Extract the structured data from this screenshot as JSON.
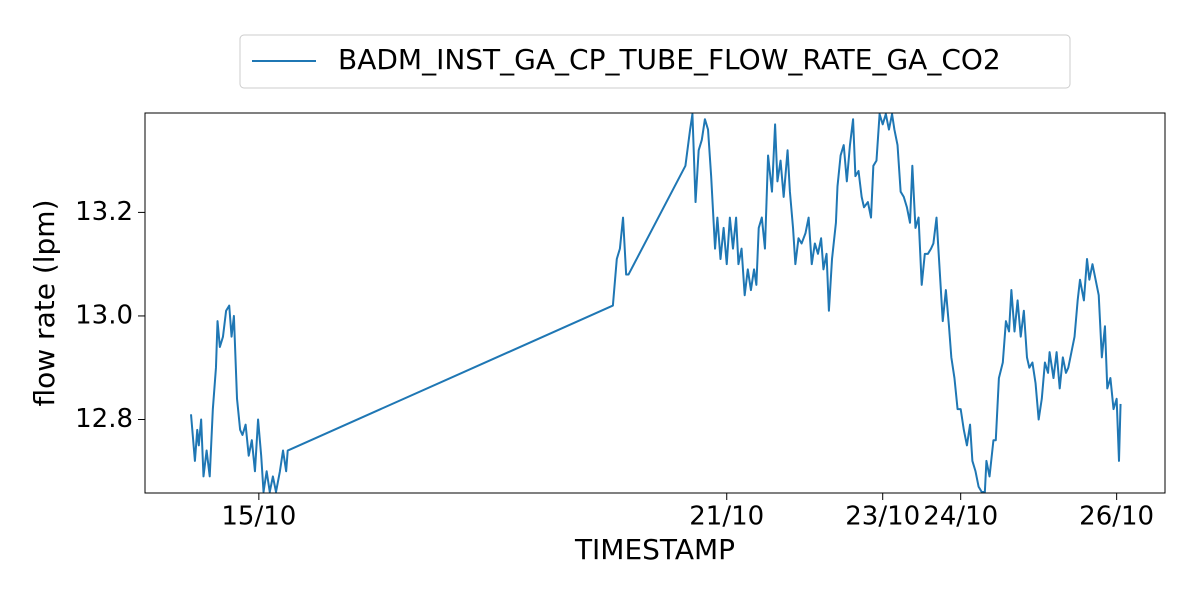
{
  "chart_data": {
    "type": "line",
    "xlabel": "TIMESTAMP",
    "ylabel": "flow rate (lpm)",
    "legend": "upper center",
    "xlim": [
      13.54,
      26.62
    ],
    "xticks": [
      {
        "value": 15,
        "label": "15/10"
      },
      {
        "value": 21,
        "label": "21/10"
      },
      {
        "value": 23,
        "label": "23/10"
      },
      {
        "value": 24,
        "label": "24/10"
      },
      {
        "value": 26,
        "label": "26/10"
      }
    ],
    "ylim": [
      12.658,
      13.392
    ],
    "yticks": [
      {
        "value": 12.8,
        "label": "12.8"
      },
      {
        "value": 13.0,
        "label": "13.0"
      },
      {
        "value": 13.2,
        "label": "13.2"
      }
    ],
    "series": [
      {
        "name": "BADM_INST_GA_CP_TUBE_FLOW_RATE_GA_CO2",
        "color": "#1f77b4",
        "x": [
          14.13,
          14.18,
          14.21,
          14.23,
          14.26,
          14.29,
          14.33,
          14.37,
          14.41,
          14.45,
          14.47,
          14.5,
          14.54,
          14.58,
          14.62,
          14.65,
          14.68,
          14.72,
          14.76,
          14.79,
          14.83,
          14.87,
          14.91,
          14.95,
          14.99,
          15.03,
          15.06,
          15.1,
          15.14,
          15.18,
          15.22,
          15.27,
          15.31,
          15.35,
          15.37,
          19.54,
          19.59,
          19.63,
          19.67,
          19.71,
          19.74,
          20.47,
          20.53,
          20.56,
          20.6,
          20.64,
          20.68,
          20.72,
          20.76,
          20.8,
          20.85,
          20.88,
          20.92,
          20.96,
          21.0,
          21.04,
          21.08,
          21.12,
          21.15,
          21.19,
          21.23,
          21.27,
          21.31,
          21.35,
          21.38,
          21.41,
          21.45,
          21.49,
          21.53,
          21.58,
          21.62,
          21.65,
          21.69,
          21.73,
          21.78,
          21.81,
          21.85,
          21.88,
          21.92,
          21.96,
          22.01,
          22.05,
          22.09,
          22.13,
          22.17,
          22.21,
          22.24,
          22.28,
          22.31,
          22.35,
          22.4,
          22.42,
          22.46,
          22.5,
          22.54,
          22.58,
          22.62,
          22.65,
          22.69,
          22.73,
          22.76,
          22.81,
          22.85,
          22.88,
          22.92,
          22.96,
          23.0,
          23.04,
          23.08,
          23.12,
          23.15,
          23.19,
          23.23,
          23.27,
          23.31,
          23.35,
          23.38,
          23.42,
          23.46,
          23.5,
          23.54,
          23.58,
          23.62,
          23.65,
          23.69,
          23.73,
          23.77,
          23.81,
          23.85,
          23.88,
          23.92,
          23.96,
          24.0,
          24.04,
          24.08,
          24.12,
          24.15,
          24.19,
          24.23,
          24.27,
          24.31,
          24.33,
          24.37,
          24.42,
          24.45,
          24.49,
          24.54,
          24.58,
          24.62,
          24.65,
          24.69,
          24.73,
          24.77,
          24.81,
          24.85,
          24.88,
          24.92,
          24.96,
          25.0,
          25.04,
          25.08,
          25.12,
          25.14,
          25.19,
          25.23,
          25.27,
          25.31,
          25.35,
          25.38,
          25.42,
          25.46,
          25.5,
          25.53,
          25.58,
          25.62,
          25.65,
          25.69,
          25.73,
          25.77,
          25.81,
          25.85,
          25.88,
          25.92,
          25.96,
          26.0,
          26.03,
          26.05
        ],
        "values": [
          12.81,
          12.72,
          12.78,
          12.75,
          12.8,
          12.69,
          12.74,
          12.69,
          12.82,
          12.9,
          12.99,
          12.94,
          12.96,
          13.01,
          13.02,
          12.96,
          13.0,
          12.84,
          12.78,
          12.77,
          12.79,
          12.73,
          12.76,
          12.7,
          12.8,
          12.73,
          12.66,
          12.7,
          12.66,
          12.69,
          12.66,
          12.7,
          12.74,
          12.7,
          12.74,
          13.02,
          13.11,
          13.13,
          13.19,
          13.08,
          13.08,
          13.29,
          13.36,
          13.39,
          13.22,
          13.32,
          13.34,
          13.38,
          13.36,
          13.27,
          13.13,
          13.19,
          13.11,
          13.17,
          13.1,
          13.19,
          13.13,
          13.19,
          13.1,
          13.13,
          13.04,
          13.09,
          13.05,
          13.09,
          13.06,
          13.17,
          13.19,
          13.13,
          13.31,
          13.24,
          13.37,
          13.26,
          13.3,
          13.23,
          13.32,
          13.24,
          13.17,
          13.1,
          13.15,
          13.14,
          13.16,
          13.19,
          13.1,
          13.14,
          13.12,
          13.15,
          13.09,
          13.12,
          13.01,
          13.11,
          13.18,
          13.25,
          13.31,
          13.33,
          13.26,
          13.33,
          13.38,
          13.27,
          13.28,
          13.23,
          13.21,
          13.22,
          13.19,
          13.29,
          13.3,
          13.39,
          13.37,
          13.39,
          13.36,
          13.39,
          13.36,
          13.33,
          13.24,
          13.23,
          13.21,
          13.18,
          13.29,
          13.17,
          13.19,
          13.06,
          13.12,
          13.12,
          13.13,
          13.14,
          13.19,
          13.09,
          12.99,
          13.05,
          12.98,
          12.92,
          12.88,
          12.82,
          12.82,
          12.78,
          12.75,
          12.79,
          12.72,
          12.7,
          12.67,
          12.66,
          12.66,
          12.72,
          12.69,
          12.76,
          12.76,
          12.88,
          12.91,
          12.99,
          12.97,
          13.05,
          12.97,
          13.03,
          12.96,
          13.01,
          12.92,
          12.9,
          12.91,
          12.87,
          12.8,
          12.84,
          12.91,
          12.89,
          12.93,
          12.88,
          12.93,
          12.86,
          12.92,
          12.89,
          12.9,
          12.93,
          12.96,
          13.03,
          13.07,
          13.03,
          13.11,
          13.07,
          13.1,
          13.07,
          13.04,
          12.92,
          12.98,
          12.86,
          12.88,
          12.82,
          12.84,
          12.72,
          12.83
        ]
      }
    ]
  }
}
